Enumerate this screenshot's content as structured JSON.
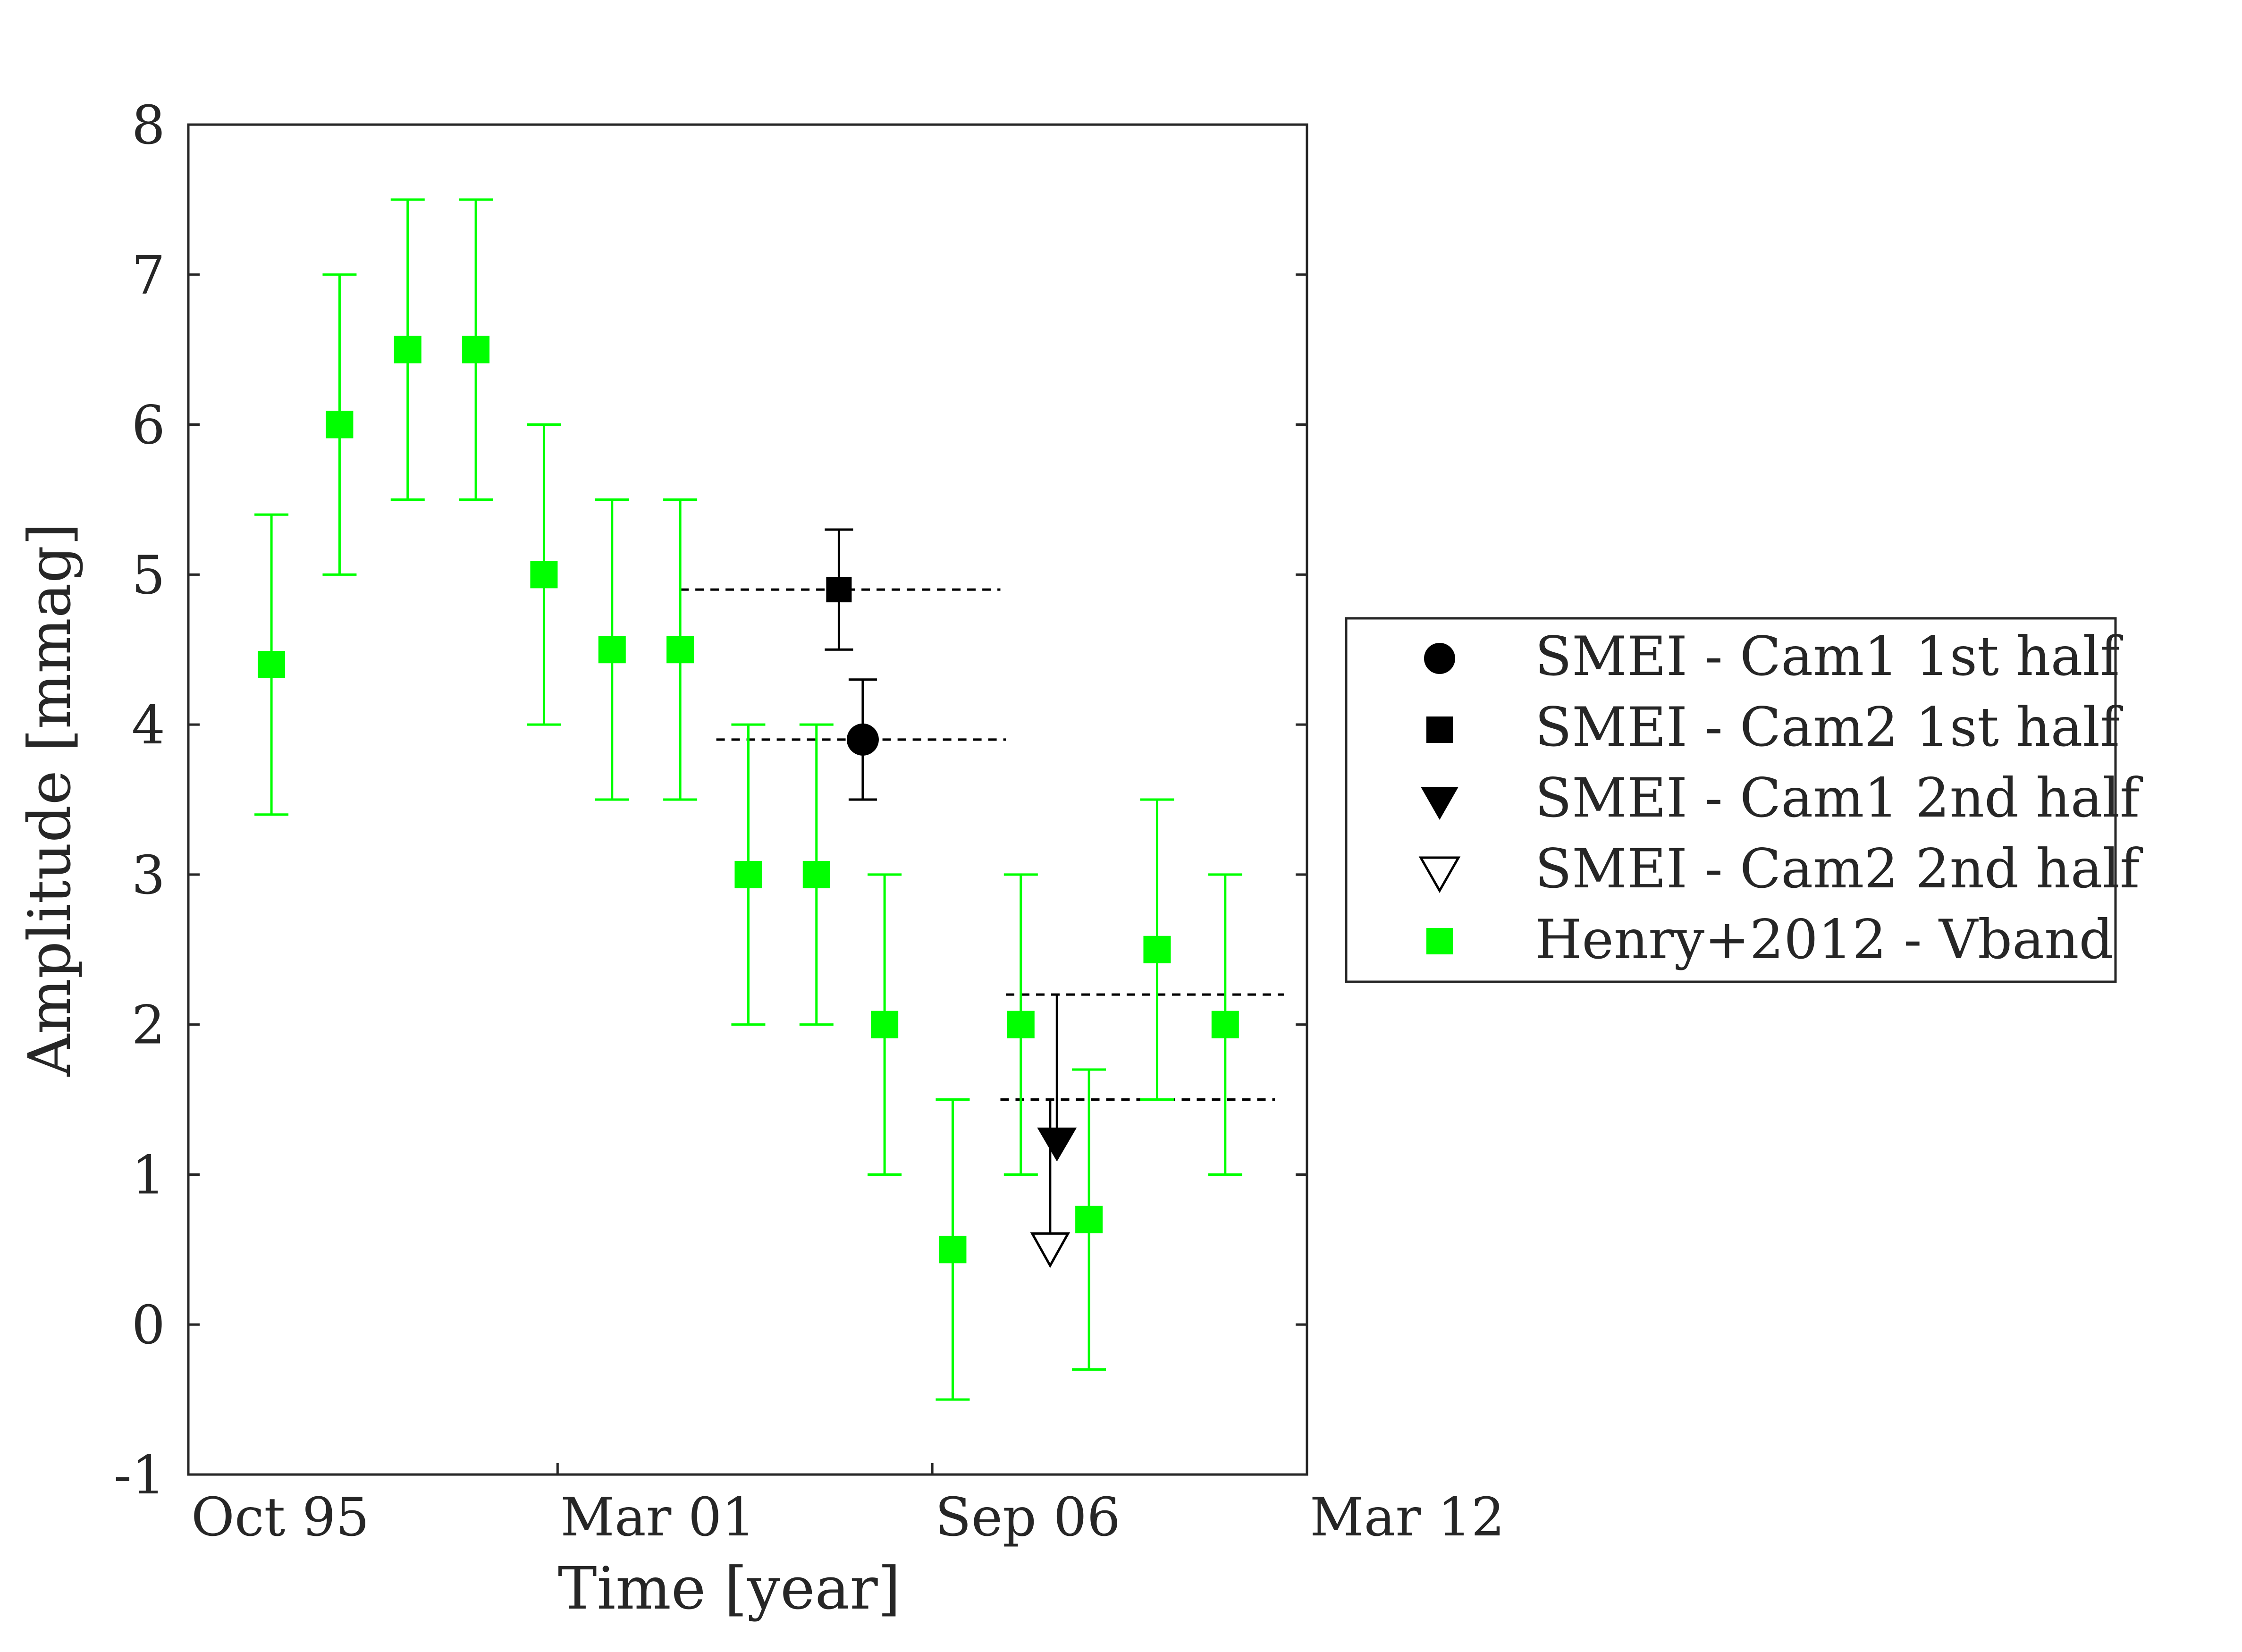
{
  "chart_data": {
    "type": "scatter",
    "title": "",
    "xlabel": "Time [year]",
    "ylabel": "Amplitude [mmag]",
    "xlim": [
      1995.75,
      2012.17
    ],
    "ylim": [
      -1,
      8
    ],
    "xticks": [
      {
        "value": 1995.75,
        "label": "Oct 95"
      },
      {
        "value": 2001.17,
        "label": "Mar 01"
      },
      {
        "value": 2006.67,
        "label": "Sep 06"
      },
      {
        "value": 2012.17,
        "label": "Mar 12"
      }
    ],
    "yticks": [
      -1,
      0,
      1,
      2,
      3,
      4,
      5,
      6,
      7,
      8
    ],
    "legend_position": "outside-right",
    "colors": {
      "henry": "#00ff00",
      "smei": "#000000"
    },
    "henry": {
      "name": "Henry+2012 - Vband",
      "points": [
        {
          "x": 1996.97,
          "y": 4.4,
          "err": 1.0
        },
        {
          "x": 1997.97,
          "y": 6.0,
          "err": 1.0
        },
        {
          "x": 1998.97,
          "y": 6.5,
          "err": 1.0
        },
        {
          "x": 1999.97,
          "y": 6.5,
          "err": 1.0
        },
        {
          "x": 2000.97,
          "y": 5.0,
          "err": 1.0
        },
        {
          "x": 2001.97,
          "y": 4.5,
          "err": 1.0
        },
        {
          "x": 2002.97,
          "y": 4.5,
          "err": 1.0
        },
        {
          "x": 2003.97,
          "y": 3.0,
          "err": 1.0
        },
        {
          "x": 2004.97,
          "y": 3.0,
          "err": 1.0
        },
        {
          "x": 2005.97,
          "y": 2.0,
          "err": 1.0
        },
        {
          "x": 2006.97,
          "y": 0.5,
          "err": 1.0
        },
        {
          "x": 2007.97,
          "y": 2.0,
          "err": 1.0
        },
        {
          "x": 2008.97,
          "y": 0.7,
          "err": 1.0
        },
        {
          "x": 2009.97,
          "y": 2.5,
          "err": 1.0
        },
        {
          "x": 2010.97,
          "y": 2.0,
          "err": 1.0
        }
      ]
    },
    "smei": [
      {
        "name": "SMEI - Cam1 1st half",
        "marker": "circle",
        "x": 2005.65,
        "y": 3.9,
        "err": 0.4,
        "x_range": [
          2003.5,
          2007.75
        ]
      },
      {
        "name": "SMEI - Cam2 1st half",
        "marker": "square",
        "x": 2005.3,
        "y": 4.9,
        "err": 0.4,
        "x_range": [
          2002.97,
          2007.67
        ]
      },
      {
        "name": "SMEI - Cam1 2nd half",
        "marker": "triangle-down-filled",
        "x": 2008.5,
        "y": 1.2,
        "upper": 2.2,
        "x_range": [
          2007.75,
          2011.83
        ]
      },
      {
        "name": "SMEI - Cam2 2nd half",
        "marker": "triangle-down-open",
        "x": 2008.4,
        "y": 0.5,
        "upper": 1.5,
        "x_range": [
          2007.67,
          2011.7
        ]
      }
    ]
  }
}
